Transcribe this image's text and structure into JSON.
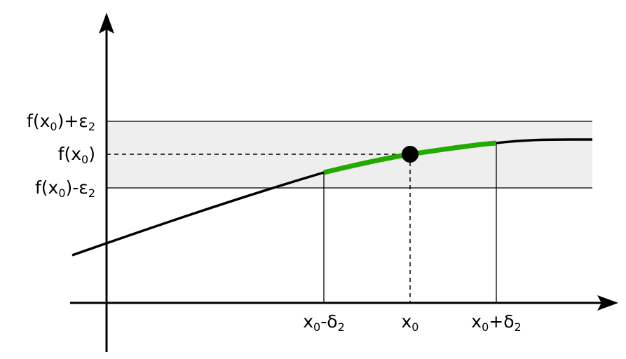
{
  "diagram": {
    "y_labels": {
      "upper": {
        "base": "f(x",
        "sub": "0",
        "mid": ")+ε",
        "sub2": "2"
      },
      "center": {
        "base": "f(x",
        "sub": "0",
        "mid": ")",
        "sub2": ""
      },
      "lower": {
        "base": "f(x",
        "sub": "0",
        "mid": ")-ε",
        "sub2": "2"
      }
    },
    "x_labels": {
      "left": {
        "base": "x",
        "sub": "0",
        "mid": "-δ",
        "sub2": "2"
      },
      "center": {
        "base": "x",
        "sub": "0",
        "mid": "",
        "sub2": ""
      },
      "right": {
        "base": "x",
        "sub": "0",
        "mid": "+δ",
        "sub2": "2"
      }
    },
    "colors": {
      "curve": "#000000",
      "highlight": "#22aa00",
      "band": "#eeeeee",
      "point": "#000000"
    }
  }
}
